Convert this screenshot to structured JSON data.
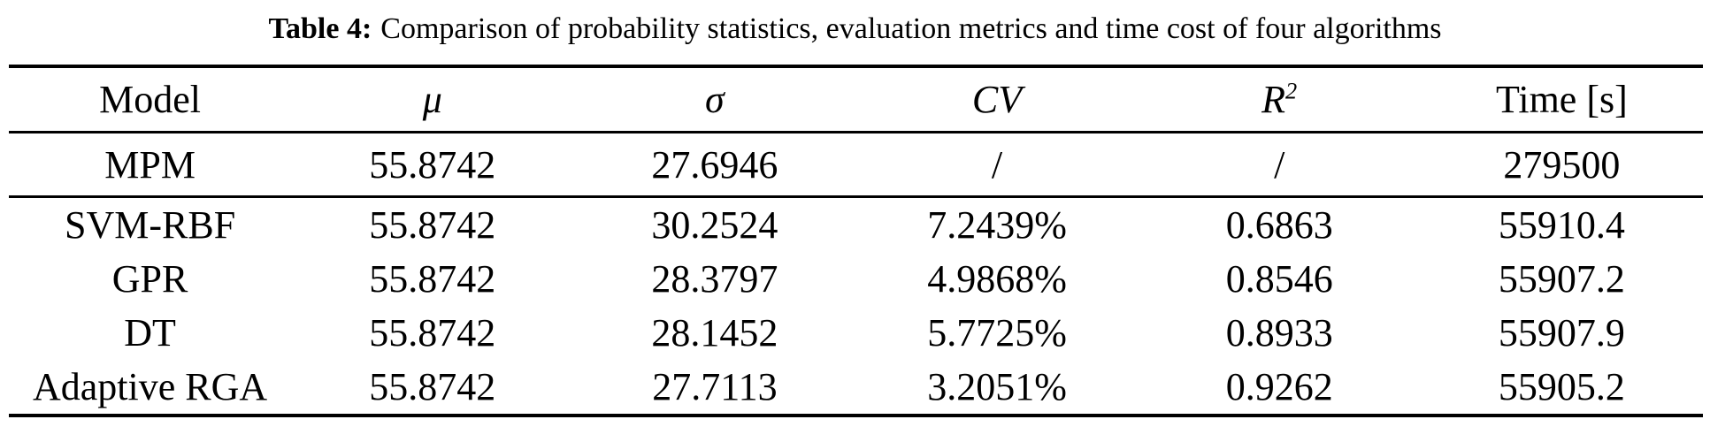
{
  "caption": {
    "label": "Table 4:",
    "text": "Comparison of probability statistics, evaluation metrics and time cost of four algorithms"
  },
  "table": {
    "columns": [
      {
        "label": "Model"
      },
      {
        "label": "μ"
      },
      {
        "label": "σ"
      },
      {
        "label": "CV"
      },
      {
        "label": "R",
        "sup": "2"
      },
      {
        "label": "Time [s]"
      }
    ],
    "rows": [
      {
        "model": "MPM",
        "mu": "55.8742",
        "sigma": "27.6946",
        "cv": "/",
        "r2": "/",
        "time": "279500"
      },
      {
        "model": "SVM-RBF",
        "mu": "55.8742",
        "sigma": "30.2524",
        "cv": "7.2439%",
        "r2": "0.6863",
        "time": "55910.4"
      },
      {
        "model": "GPR",
        "mu": "55.8742",
        "sigma": "28.3797",
        "cv": "4.9868%",
        "r2": "0.8546",
        "time": "55907.2"
      },
      {
        "model": "DT",
        "mu": "55.8742",
        "sigma": "28.1452",
        "cv": "5.7725%",
        "r2": "0.8933",
        "time": "55907.9"
      },
      {
        "model": "Adaptive RGA",
        "mu": "55.8742",
        "sigma": "27.7113",
        "cv": "3.2051%",
        "r2": "0.9262",
        "time": "55905.2"
      }
    ]
  },
  "colors": {
    "text": "#000000",
    "background": "#ffffff",
    "rule": "#000000"
  }
}
